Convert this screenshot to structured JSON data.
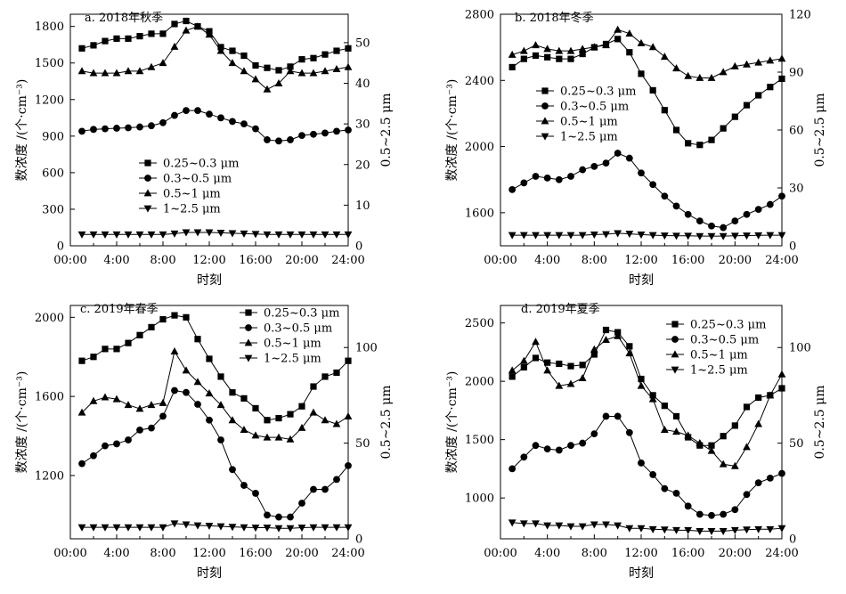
{
  "figure": {
    "x_tick_labels": [
      "00:00",
      "4:00",
      "8:00",
      "12:00",
      "16:00",
      "20:00",
      "24:00"
    ],
    "x_tick_values": [
      0,
      4,
      8,
      12,
      16,
      20,
      24
    ],
    "xlabel": "时刻",
    "ylabel_left": "数浓度 /(个·cm⁻³)",
    "ylabel_right": "0.5~2.5 μm",
    "legend_labels": [
      "0.25~0.3 μm",
      "0.3~0.5 μm",
      "0.5~1 μm",
      "1~2.5 μm"
    ]
  },
  "chart_data": [
    {
      "type": "line",
      "title": "a. 2018年秋季",
      "xlabel": "时刻",
      "ylabel": "数浓度 /(个·cm⁻³)",
      "y2label": "0.5~2.5 μm",
      "xlim": [
        0,
        24
      ],
      "ylim": [
        0,
        1900
      ],
      "yticks": [
        0,
        300,
        600,
        900,
        1200,
        1500,
        1800
      ],
      "y2lim": [
        0,
        57
      ],
      "y2ticks": [
        0,
        10,
        20,
        30,
        40,
        50
      ],
      "legend_position": "middle-left",
      "x": [
        1,
        2,
        3,
        4,
        5,
        6,
        7,
        8,
        9,
        10,
        11,
        12,
        13,
        14,
        15,
        16,
        17,
        18,
        19,
        20,
        21,
        22,
        23,
        24
      ],
      "series": [
        {
          "name": "0.25~0.3 μm",
          "marker": "square",
          "axis": "left",
          "values": [
            1620,
            1645,
            1680,
            1700,
            1700,
            1720,
            1740,
            1740,
            1820,
            1845,
            1800,
            1760,
            1630,
            1600,
            1560,
            1480,
            1460,
            1440,
            1470,
            1530,
            1540,
            1570,
            1600,
            1620
          ]
        },
        {
          "name": "0.3~0.5 μm",
          "marker": "circle",
          "axis": "left",
          "values": [
            940,
            955,
            960,
            965,
            968,
            975,
            985,
            1010,
            1070,
            1110,
            1110,
            1080,
            1050,
            1020,
            1000,
            960,
            870,
            860,
            870,
            905,
            915,
            925,
            940,
            950
          ]
        },
        {
          "name": "0.5~1 μm",
          "marker": "triangle-up",
          "axis": "right",
          "values": [
            43,
            42.5,
            42.5,
            42.5,
            43,
            43,
            44,
            45,
            49,
            53,
            54,
            52,
            48,
            45,
            43,
            41,
            38.5,
            40,
            43,
            42.5,
            42.5,
            43,
            43.5,
            44
          ]
        },
        {
          "name": "1~2.5 μm",
          "marker": "triangle-down",
          "axis": "right",
          "values": [
            2.8,
            2.8,
            2.8,
            2.8,
            2.8,
            2.8,
            2.8,
            2.8,
            3.0,
            3.3,
            3.3,
            3.3,
            3.2,
            3.1,
            3.0,
            2.9,
            2.8,
            2.8,
            2.8,
            2.8,
            2.8,
            2.8,
            2.8,
            2.8
          ]
        }
      ]
    },
    {
      "type": "line",
      "title": "b. 2018年冬季",
      "xlabel": "时刻",
      "ylabel": "数浓度 /(个·cm⁻³)",
      "y2label": "0.5~2.5 μm",
      "xlim": [
        0,
        24
      ],
      "ylim": [
        1400,
        2800
      ],
      "yticks": [
        1600,
        2000,
        2400,
        2800
      ],
      "y2lim": [
        0,
        120
      ],
      "y2ticks": [
        0,
        30,
        60,
        90,
        120
      ],
      "legend_position": "middle-left",
      "x": [
        1,
        2,
        3,
        4,
        5,
        6,
        7,
        8,
        9,
        10,
        11,
        12,
        13,
        14,
        15,
        16,
        17,
        18,
        19,
        20,
        21,
        22,
        23,
        24
      ],
      "series": [
        {
          "name": "0.25~0.3 μm",
          "marker": "square",
          "axis": "left",
          "values": [
            2480,
            2530,
            2550,
            2540,
            2530,
            2530,
            2560,
            2600,
            2620,
            2650,
            2570,
            2440,
            2340,
            2220,
            2100,
            2020,
            2010,
            2040,
            2110,
            2180,
            2250,
            2310,
            2360,
            2410
          ]
        },
        {
          "name": "0.3~0.5 μm",
          "marker": "circle",
          "axis": "left",
          "values": [
            1740,
            1780,
            1820,
            1810,
            1800,
            1820,
            1860,
            1880,
            1900,
            1960,
            1930,
            1840,
            1770,
            1700,
            1640,
            1590,
            1550,
            1520,
            1510,
            1550,
            1590,
            1620,
            1650,
            1700
          ]
        },
        {
          "name": "0.5~1 μm",
          "marker": "triangle-up",
          "axis": "right",
          "values": [
            99,
            101,
            104,
            102,
            101,
            101,
            102,
            103,
            104,
            112,
            110,
            105,
            103,
            98,
            92,
            88,
            87,
            87,
            90,
            93,
            94,
            95,
            96,
            97
          ]
        },
        {
          "name": "1~2.5 μm",
          "marker": "triangle-down",
          "axis": "right",
          "values": [
            5.5,
            5.5,
            5.5,
            5.5,
            5.5,
            5.5,
            5.5,
            5.8,
            6.0,
            6.5,
            6.2,
            5.8,
            5.5,
            5.3,
            5.2,
            5.2,
            5.0,
            5.0,
            5.0,
            5.2,
            5.3,
            5.4,
            5.5,
            5.5
          ]
        }
      ]
    },
    {
      "type": "line",
      "title": "c. 2019年春季",
      "xlabel": "时刻",
      "ylabel": "数浓度 /(个·cm⁻³)",
      "y2label": "0.5~2.5 μm",
      "xlim": [
        0,
        24
      ],
      "ylim": [
        880,
        2060
      ],
      "yticks": [
        1200,
        1600,
        2000
      ],
      "y2lim": [
        0,
        122
      ],
      "y2ticks": [
        0,
        50,
        100
      ],
      "legend_position": "top-right",
      "x": [
        1,
        2,
        3,
        4,
        5,
        6,
        7,
        8,
        9,
        10,
        11,
        12,
        13,
        14,
        15,
        16,
        17,
        18,
        19,
        20,
        21,
        22,
        23,
        24
      ],
      "series": [
        {
          "name": "0.25~0.3 μm",
          "marker": "square",
          "axis": "left",
          "values": [
            1780,
            1800,
            1840,
            1840,
            1870,
            1910,
            1950,
            1990,
            2010,
            2000,
            1890,
            1790,
            1700,
            1620,
            1590,
            1540,
            1480,
            1490,
            1510,
            1550,
            1650,
            1700,
            1720,
            1780
          ]
        },
        {
          "name": "0.3~0.5 μm",
          "marker": "circle",
          "axis": "left",
          "values": [
            1260,
            1300,
            1350,
            1360,
            1380,
            1430,
            1440,
            1500,
            1630,
            1620,
            1560,
            1480,
            1380,
            1230,
            1150,
            1110,
            1000,
            990,
            990,
            1060,
            1130,
            1130,
            1180,
            1250
          ]
        },
        {
          "name": "0.5~1 μm",
          "marker": "triangle-up",
          "axis": "right",
          "values": [
            66,
            72,
            74,
            73,
            70,
            68,
            70,
            71,
            98,
            88,
            82,
            76,
            70,
            62,
            57,
            54,
            53,
            53,
            52,
            58,
            66,
            62,
            60,
            64
          ]
        },
        {
          "name": "1~2.5 μm",
          "marker": "triangle-down",
          "axis": "right",
          "values": [
            6.0,
            6.0,
            6.0,
            6.0,
            6.0,
            6.0,
            6.0,
            6.0,
            8.0,
            7.5,
            7.0,
            6.8,
            6.5,
            6.2,
            6.0,
            5.8,
            5.8,
            5.5,
            5.5,
            5.8,
            6.0,
            6.0,
            6.0,
            6.0
          ]
        }
      ]
    },
    {
      "type": "line",
      "title": "d. 2019年夏季",
      "xlabel": "时刻",
      "ylabel": "数浓度 /(个·cm⁻³)",
      "y2label": "0.5~2.5 μm",
      "xlim": [
        0,
        24
      ],
      "ylim": [
        650,
        2650
      ],
      "yticks": [
        1000,
        1500,
        2000,
        2500
      ],
      "y2lim": [
        0,
        122
      ],
      "y2ticks": [
        0,
        50,
        100
      ],
      "legend_position": "top-right",
      "x": [
        1,
        2,
        3,
        4,
        5,
        6,
        7,
        8,
        9,
        10,
        11,
        12,
        13,
        14,
        15,
        16,
        17,
        18,
        19,
        20,
        21,
        22,
        23,
        24
      ],
      "series": [
        {
          "name": "0.25~0.3 μm",
          "marker": "square",
          "axis": "left",
          "values": [
            2040,
            2120,
            2200,
            2160,
            2150,
            2130,
            2140,
            2230,
            2440,
            2420,
            2300,
            2020,
            1880,
            1790,
            1700,
            1520,
            1450,
            1450,
            1530,
            1620,
            1780,
            1860,
            1880,
            1940
          ]
        },
        {
          "name": "0.3~0.5 μm",
          "marker": "circle",
          "axis": "left",
          "values": [
            1250,
            1350,
            1450,
            1420,
            1410,
            1450,
            1470,
            1550,
            1700,
            1700,
            1560,
            1300,
            1200,
            1080,
            1040,
            930,
            860,
            850,
            860,
            900,
            1030,
            1130,
            1170,
            1210
          ]
        },
        {
          "name": "0.5~1 μm",
          "marker": "triangle-up",
          "axis": "right",
          "values": [
            88,
            93,
            103,
            88,
            80,
            81,
            84,
            99,
            104,
            106,
            97,
            80,
            73,
            57,
            56,
            54,
            50,
            46,
            39,
            38,
            48,
            60,
            75,
            86
          ]
        },
        {
          "name": "1~2.5 μm",
          "marker": "triangle-down",
          "axis": "right",
          "values": [
            8.5,
            8.0,
            8.0,
            7.0,
            7.0,
            6.5,
            6.5,
            7.5,
            7.5,
            7.0,
            5.5,
            5.5,
            5.0,
            4.8,
            4.5,
            4.5,
            4.0,
            4.0,
            4.0,
            4.5,
            4.8,
            5.0,
            5.0,
            5.5
          ]
        }
      ]
    }
  ]
}
